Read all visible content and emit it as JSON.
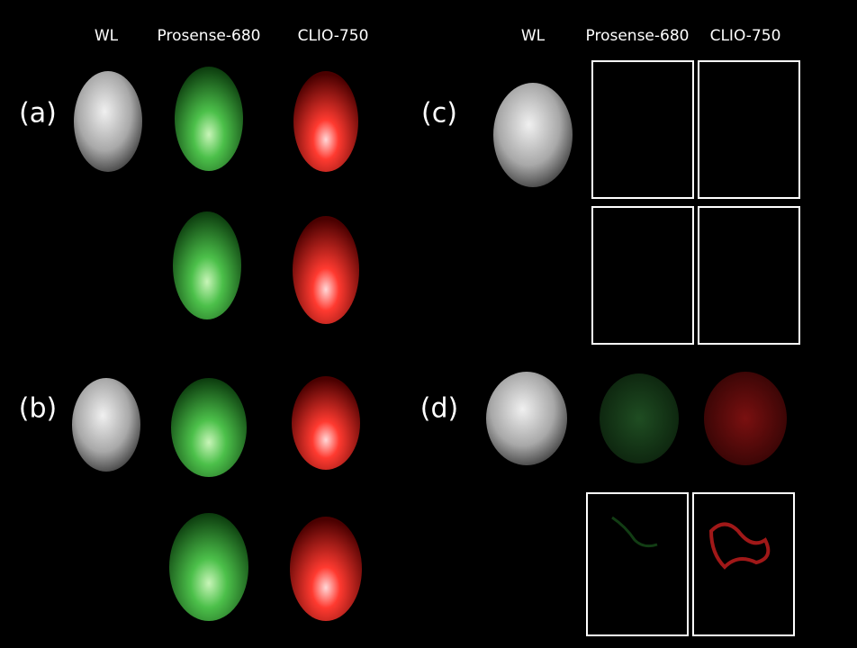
{
  "left_headers": [
    "WL",
    "Prosense-680",
    "CLIO-750"
  ],
  "right_headers": [
    "WL",
    "Prosense-680",
    "CLIO-750"
  ],
  "panel_labels": [
    "(a)",
    "(b)",
    "(c)",
    "(d)"
  ]
}
